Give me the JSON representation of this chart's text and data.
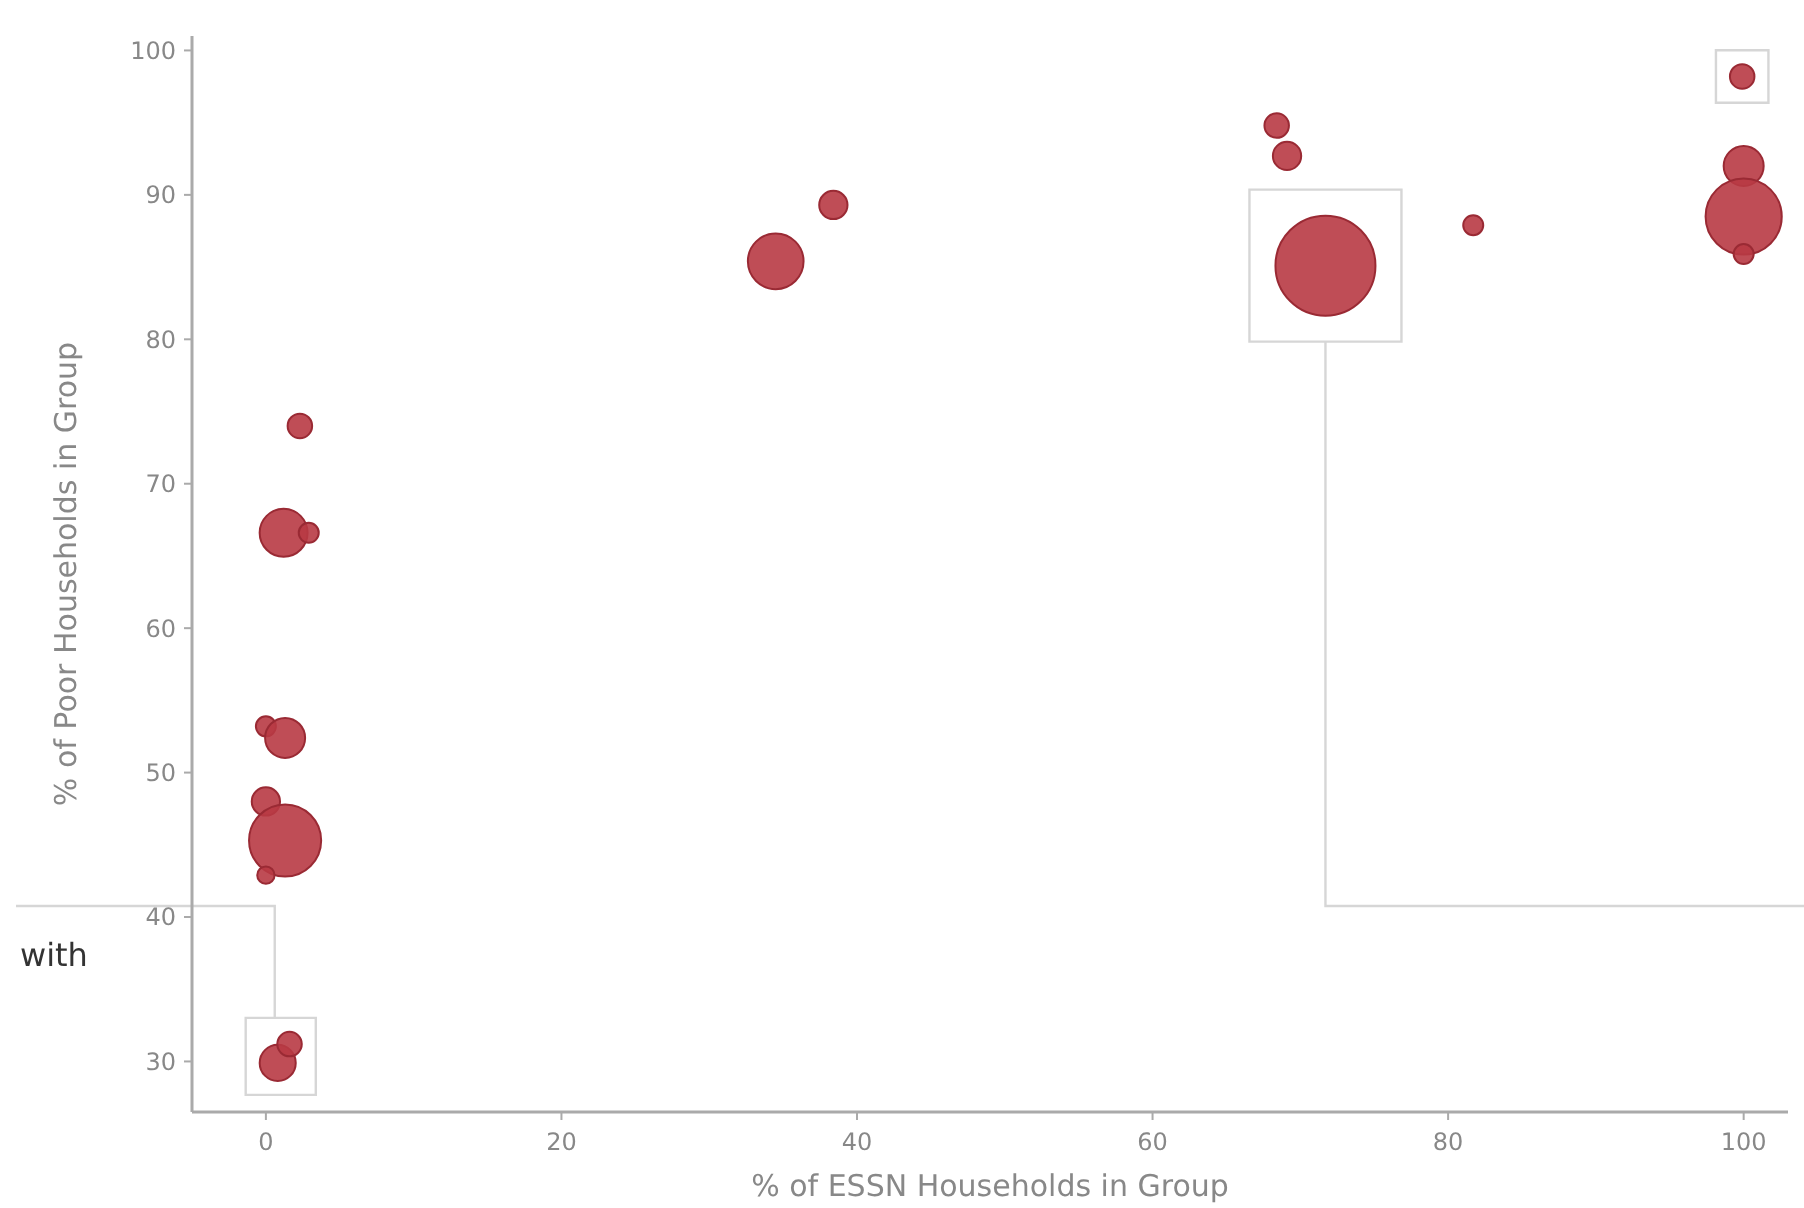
{
  "chart_data": {
    "type": "bubble",
    "xlabel": "% of ESSN Households in Group",
    "ylabel": "% of Poor Households in Group",
    "annotations": [
      "with"
    ],
    "xlim": [
      -5,
      103
    ],
    "ylim": [
      26.5,
      101
    ],
    "xticks": [
      0,
      20,
      40,
      60,
      80,
      100
    ],
    "yticks": [
      30,
      40,
      50,
      60,
      70,
      80,
      90,
      100
    ],
    "grid": false,
    "marker": "circle",
    "series": [
      {
        "color": "#b83a44",
        "x": [
          2.3,
          1.2,
          2.9,
          0,
          1.3,
          0,
          1.3,
          0,
          0.8,
          1.6,
          34.5,
          38.4,
          68.4,
          69.1,
          71.7,
          81.7,
          99.9,
          100,
          100,
          100
        ],
        "values": [
          74.0,
          66.6,
          66.6,
          53.2,
          52.4,
          48.0,
          45.3,
          42.9,
          29.9,
          31.2,
          85.4,
          89.3,
          94.8,
          92.7,
          85.1,
          87.9,
          98.2,
          92.0,
          88.5,
          85.9
        ],
        "sizes": [
          0.06,
          0.23,
          0.04,
          0.04,
          0.16,
          0.08,
          0.52,
          0.03,
          0.13,
          0.06,
          0.31,
          0.08,
          0.06,
          0.08,
          1,
          0.04,
          0.06,
          0.16,
          0.58,
          0.04
        ]
      }
    ]
  }
}
